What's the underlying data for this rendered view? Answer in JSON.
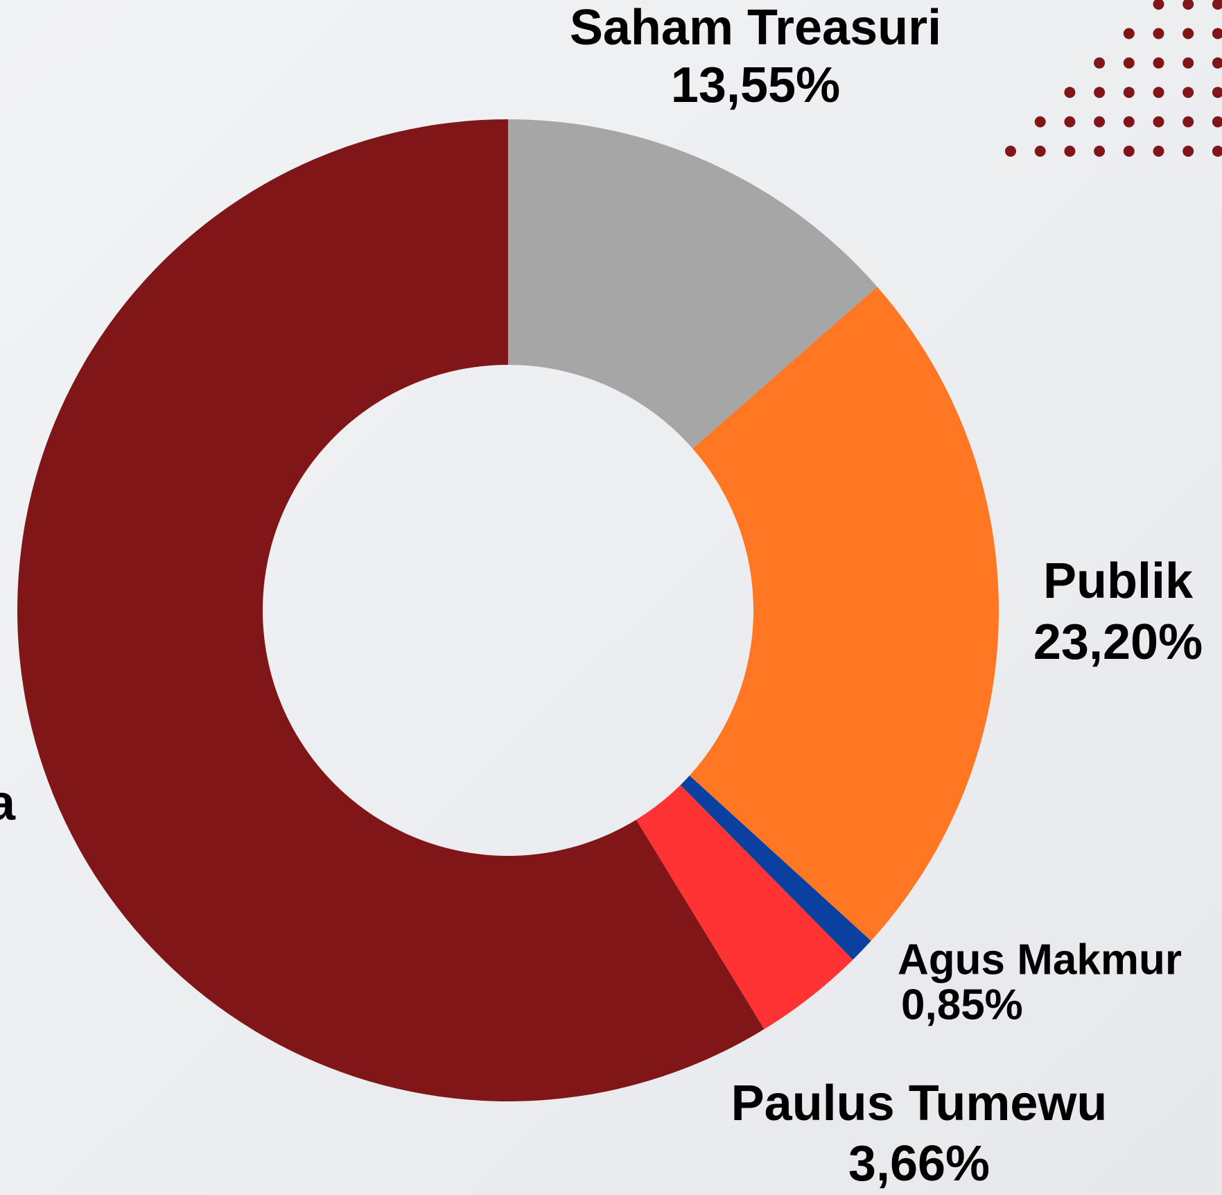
{
  "chart_data": {
    "type": "donut",
    "categories": [
      "Saham Treasuri",
      "Publik",
      "Agus Makmur",
      "Paulus Tumewu",
      "a"
    ],
    "values": [
      13.55,
      23.2,
      0.85,
      3.66,
      58.74
    ],
    "value_labels": [
      "13,55%",
      "23,20%",
      "0,85%",
      "3,66%",
      null
    ],
    "colors": [
      "#a6a6a6",
      "#ff7722",
      "#0b3fa0",
      "#ff3333",
      "#801618"
    ]
  }
}
